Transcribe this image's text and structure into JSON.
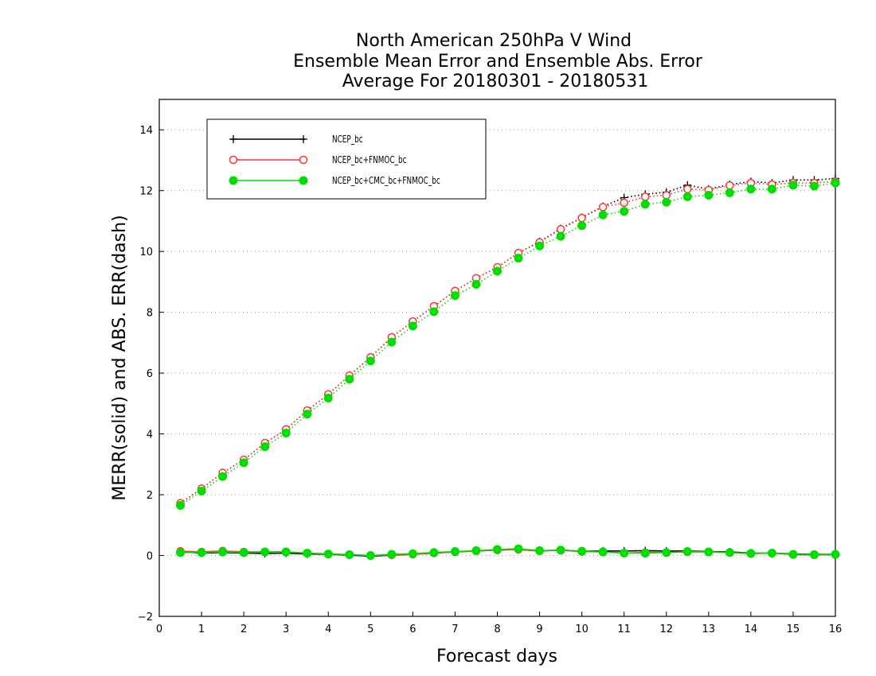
{
  "chart_data": {
    "type": "line",
    "title": [
      "North American 250hPa V Wind",
      "Ensemble Mean Error and Ensemble Abs. Error",
      "Average For 20180301 - 20180531"
    ],
    "xlabel": "Forecast days",
    "ylabel": "MERR(solid) and ABS. ERR(dash)",
    "xlim": [
      0,
      16
    ],
    "ylim": [
      -2,
      15
    ],
    "xticks": [
      0,
      1,
      2,
      3,
      4,
      5,
      6,
      7,
      8,
      9,
      10,
      11,
      12,
      13,
      14,
      15,
      16
    ],
    "yticks": [
      -2,
      0,
      2,
      4,
      6,
      8,
      10,
      12,
      14
    ],
    "grid": "horizontal dotted",
    "legend_position": "top-left",
    "x": [
      0.5,
      1,
      1.5,
      2,
      2.5,
      3,
      3.5,
      4,
      4.5,
      5,
      5.5,
      6,
      6.5,
      7,
      7.5,
      8,
      8.5,
      9,
      9.5,
      10,
      10.5,
      11,
      11.5,
      12,
      12.5,
      13,
      13.5,
      14,
      14.5,
      15,
      15.5,
      16
    ],
    "series": [
      {
        "name": "NCEP_bc",
        "color": "#000000",
        "marker": "plus",
        "merr": [
          0.12,
          0.08,
          0.1,
          0.08,
          0.07,
          0.08,
          0.05,
          0.04,
          0.01,
          -0.02,
          0.01,
          0.04,
          0.08,
          0.12,
          0.15,
          0.18,
          0.2,
          0.15,
          0.18,
          0.14,
          0.15,
          0.15,
          0.16,
          0.15,
          0.15,
          0.13,
          0.12,
          0.08,
          0.08,
          0.05,
          0.04,
          0.04
        ],
        "abs_err": [
          1.72,
          2.2,
          2.72,
          3.15,
          3.7,
          4.15,
          4.77,
          5.3,
          5.92,
          6.52,
          7.18,
          7.7,
          8.2,
          8.7,
          9.12,
          9.48,
          9.95,
          10.32,
          10.75,
          11.12,
          11.48,
          11.77,
          11.88,
          11.95,
          12.18,
          12.05,
          12.2,
          12.3,
          12.25,
          12.35,
          12.35,
          12.4
        ]
      },
      {
        "name": "NCEP_bc+FNMOC_bc",
        "color": "#ff3333",
        "marker": "open-circle",
        "merr": [
          0.14,
          0.12,
          0.15,
          0.12,
          0.12,
          0.12,
          0.08,
          0.05,
          0.03,
          0.0,
          0.02,
          0.04,
          0.08,
          0.12,
          0.15,
          0.18,
          0.2,
          0.15,
          0.17,
          0.13,
          0.12,
          0.08,
          0.1,
          0.1,
          0.12,
          0.12,
          0.1,
          0.06,
          0.08,
          0.03,
          0.02,
          0.03
        ],
        "abs_err": [
          1.72,
          2.2,
          2.72,
          3.15,
          3.7,
          4.15,
          4.77,
          5.3,
          5.92,
          6.52,
          7.18,
          7.7,
          8.2,
          8.7,
          9.12,
          9.48,
          9.95,
          10.3,
          10.73,
          11.1,
          11.46,
          11.6,
          11.8,
          11.85,
          12.05,
          12.02,
          12.17,
          12.25,
          12.2,
          12.25,
          12.25,
          12.3
        ]
      },
      {
        "name": "NCEP_bc+CMC_bc+FNMOC_bc",
        "color": "#00dd00",
        "marker": "filled-circle",
        "merr": [
          0.1,
          0.1,
          0.12,
          0.1,
          0.12,
          0.12,
          0.08,
          0.05,
          0.03,
          0.0,
          0.04,
          0.06,
          0.1,
          0.13,
          0.16,
          0.2,
          0.22,
          0.16,
          0.18,
          0.14,
          0.12,
          0.08,
          0.08,
          0.1,
          0.13,
          0.12,
          0.1,
          0.07,
          0.08,
          0.04,
          0.03,
          0.04
        ],
        "abs_err": [
          1.65,
          2.12,
          2.6,
          3.05,
          3.58,
          4.03,
          4.65,
          5.18,
          5.8,
          6.4,
          7.02,
          7.55,
          8.02,
          8.55,
          8.92,
          9.35,
          9.78,
          10.18,
          10.5,
          10.85,
          11.2,
          11.32,
          11.55,
          11.62,
          11.8,
          11.85,
          11.93,
          12.05,
          12.05,
          12.18,
          12.15,
          12.25
        ]
      }
    ]
  }
}
